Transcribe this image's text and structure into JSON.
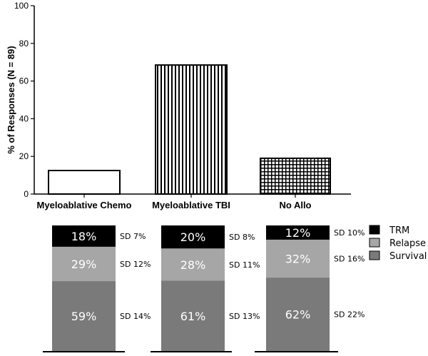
{
  "chart_data": [
    {
      "type": "bar",
      "ylabel": "% of Responses (N = 89)",
      "ylim": [
        0,
        100
      ],
      "yticks": [
        0,
        20,
        40,
        60,
        80,
        100
      ],
      "categories": [
        "Myeloablative Chemo",
        "Myeloablative TBI",
        "No Allo"
      ],
      "values": [
        12.5,
        68.5,
        19
      ],
      "fills": [
        "open",
        "vertical-stripes",
        "grid"
      ]
    },
    {
      "type": "bar",
      "stacked": true,
      "columns": [
        {
          "segments": [
            {
              "series": "Survival",
              "label": "59%",
              "value": 59,
              "sd": "SD 14%"
            },
            {
              "series": "Relapse",
              "label": "29%",
              "value": 29,
              "sd": "SD 12%"
            },
            {
              "series": "TRM",
              "label": "18%",
              "value": 18,
              "sd": "SD 7%"
            }
          ]
        },
        {
          "segments": [
            {
              "series": "Survival",
              "label": "61%",
              "value": 61,
              "sd": "SD 13%"
            },
            {
              "series": "Relapse",
              "label": "28%",
              "value": 28,
              "sd": "SD 11%"
            },
            {
              "series": "TRM",
              "label": "20%",
              "value": 20,
              "sd": "SD 8%"
            }
          ]
        },
        {
          "segments": [
            {
              "series": "Survival",
              "label": "62%",
              "value": 62,
              "sd": "SD 22%"
            },
            {
              "series": "Relapse",
              "label": "32%",
              "value": 32,
              "sd": "SD 16%"
            },
            {
              "series": "TRM",
              "label": "12%",
              "value": 12,
              "sd": "SD 10%"
            }
          ]
        }
      ],
      "legend": [
        {
          "name": "TRM",
          "color": "#000000"
        },
        {
          "name": "Relapse",
          "color": "#a6a6a6"
        },
        {
          "name": "Survival",
          "color": "#7a7a7a"
        }
      ],
      "legend_position": "right"
    }
  ]
}
